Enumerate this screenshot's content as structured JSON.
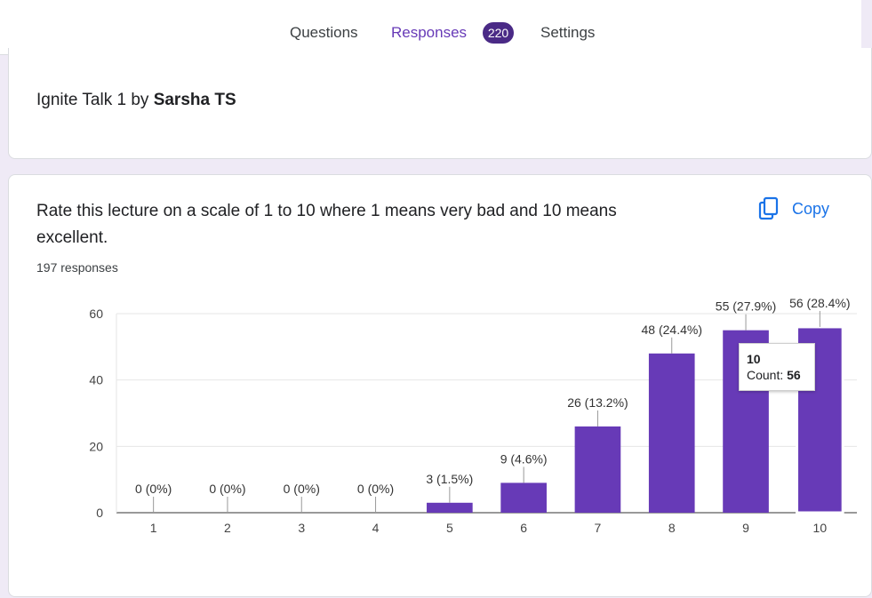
{
  "tabs": [
    {
      "label": "Questions"
    },
    {
      "label": "Responses",
      "badge": "220"
    },
    {
      "label": "Settings"
    }
  ],
  "form": {
    "title_prefix": "Ignite Talk 1 by ",
    "title_bold": "Sarsha TS"
  },
  "question": {
    "text": "Rate this lecture on a scale of 1 to 10 where 1 means very bad and 10 means excellent.",
    "responses": "197 responses",
    "copy_label": "Copy"
  },
  "tooltip": {
    "title": "10",
    "count_label": "Count: ",
    "count_value": "56"
  },
  "colors": {
    "accent": "#673ab7",
    "bar": "#673ab7",
    "copy": "#1a73e8"
  },
  "chart_data": {
    "type": "bar",
    "categories": [
      "1",
      "2",
      "3",
      "4",
      "5",
      "6",
      "7",
      "8",
      "9",
      "10"
    ],
    "values": [
      0,
      0,
      0,
      0,
      3,
      9,
      26,
      48,
      55,
      56
    ],
    "labels": [
      "0 (0%)",
      "0 (0%)",
      "0 (0%)",
      "0 (0%)",
      "3 (1.5%)",
      "9 (4.6%)",
      "26 (13.2%)",
      "48 (24.4%)",
      "55 (27.9%)",
      "56 (28.4%)"
    ],
    "yticks": [
      0,
      20,
      40,
      60
    ],
    "ylim": [
      0,
      60
    ],
    "grid": true,
    "highlighted_category": "10"
  }
}
